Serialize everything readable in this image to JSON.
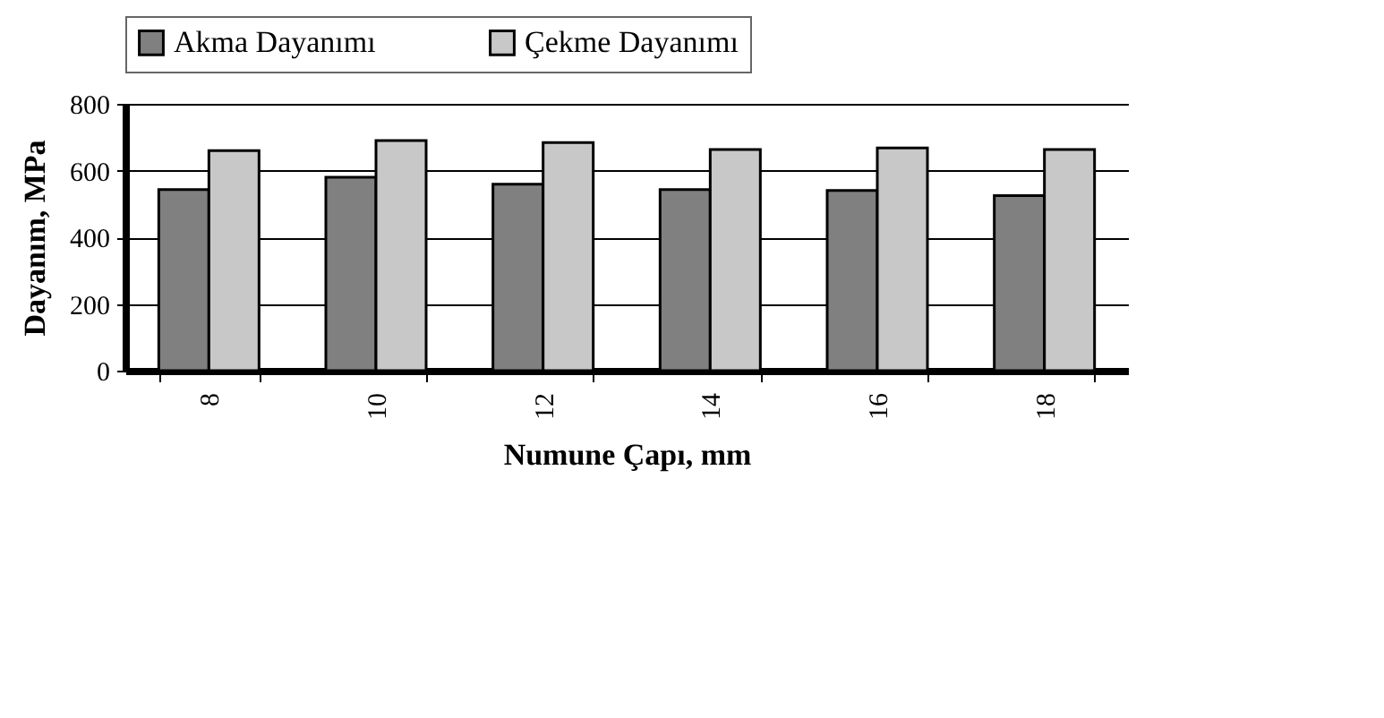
{
  "chart_data": {
    "type": "bar",
    "xlabel": "Numune Çapı, mm",
    "ylabel": "Dayanım, MPa",
    "categories": [
      "8",
      "10",
      "12",
      "14",
      "16",
      "18"
    ],
    "series": [
      {
        "name": "Akma Dayanımı",
        "color": "#808080",
        "values": [
          543,
          580,
          559,
          543,
          540,
          525
        ]
      },
      {
        "name": "Çekme Dayanımı",
        "color": "#c8c8c8",
        "values": [
          660,
          690,
          684,
          663,
          668,
          663
        ]
      }
    ],
    "ylim": [
      0,
      800
    ],
    "yticks": [
      0,
      200,
      400,
      600,
      800
    ],
    "grid": "y",
    "legend": "top"
  }
}
